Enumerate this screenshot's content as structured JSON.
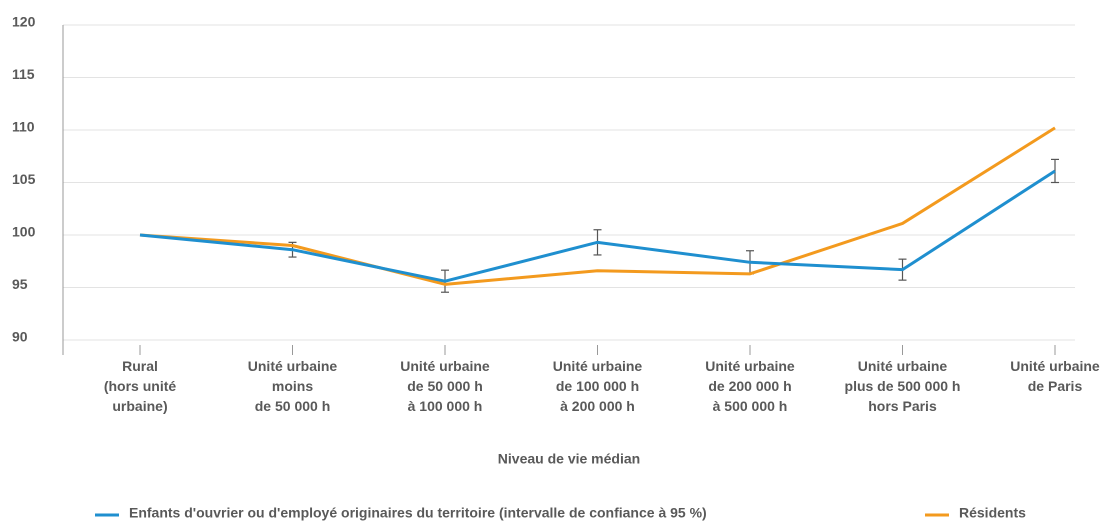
{
  "chart_data": {
    "type": "line",
    "categories": [
      [
        "Rural",
        "(hors unité",
        "urbaine)"
      ],
      [
        "Unité urbaine",
        "moins",
        "de 50 000 h"
      ],
      [
        "Unité urbaine",
        "de 50 000 h",
        "à 100 000 h"
      ],
      [
        "Unité urbaine",
        "de 100 000 h",
        "à 200 000 h"
      ],
      [
        "Unité urbaine",
        "de 200 000 h",
        "à 500 000 h"
      ],
      [
        "Unité urbaine",
        "plus de 500 000 h",
        "hors Paris"
      ],
      [
        "Unité urbaine",
        "de Paris"
      ]
    ],
    "series": [
      {
        "name": "Enfants d'ouvrier ou d'employé originaires du territoire (intervalle de confiance à 95 %)",
        "color": "#1f8fcf",
        "values": [
          100,
          98.6,
          95.6,
          99.3,
          97.4,
          96.7,
          106.1
        ],
        "errors": [
          null,
          0.7,
          1.05,
          1.2,
          1.1,
          1.0,
          1.1
        ]
      },
      {
        "name": "Résidents",
        "color": "#f39a1e",
        "values": [
          100,
          99.0,
          95.3,
          96.6,
          96.3,
          101.1,
          110.2
        ]
      }
    ],
    "xlabel": "Niveau de vie médian",
    "ylim": [
      90,
      120
    ],
    "yticks": [
      90,
      95,
      100,
      105,
      110,
      115,
      120
    ],
    "grid": true
  }
}
